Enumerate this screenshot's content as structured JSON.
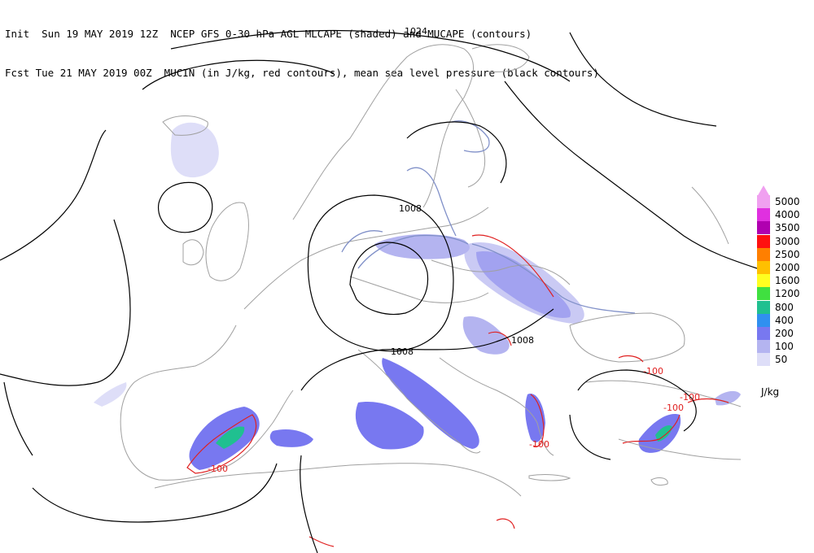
{
  "header": {
    "line1": "Init  Sun 19 MAY 2019 12Z  NCEP GFS 0-30 hPa AGL MLCAPE (shaded) and MUCAPE (contours)",
    "line2": "Fcst Tue 21 MAY 2019 00Z  MUCIN (in J/kg, red contours), mean sea level pressure (black contours)"
  },
  "isobar_labels": [
    "1024",
    "1008",
    "1008",
    "1008"
  ],
  "mucin_labels": [
    "-100",
    "-100",
    "-100",
    "-100",
    "-100"
  ],
  "legend": {
    "units": "J/kg",
    "levels": [
      {
        "label": "5000",
        "color": "#f0a0f0"
      },
      {
        "label": "4000",
        "color": "#e030e0"
      },
      {
        "label": "3500",
        "color": "#b000b0"
      },
      {
        "label": "3000",
        "color": "#ff1010"
      },
      {
        "label": "2500",
        "color": "#ff7f00"
      },
      {
        "label": "2000",
        "color": "#ffc000"
      },
      {
        "label": "1600",
        "color": "#ffff20"
      },
      {
        "label": "1200",
        "color": "#40e040"
      },
      {
        "label": "800",
        "color": "#20c090"
      },
      {
        "label": "400",
        "color": "#3090f0"
      },
      {
        "label": "200",
        "color": "#7878f0"
      },
      {
        "label": "100",
        "color": "#b4b4f0"
      },
      {
        "label": "50",
        "color": "#dedef8"
      }
    ]
  },
  "colors": {
    "coastline": "#a0a0a0",
    "isobar": "#000000",
    "mucin": "#e02020",
    "mucape": "#8090c8"
  }
}
